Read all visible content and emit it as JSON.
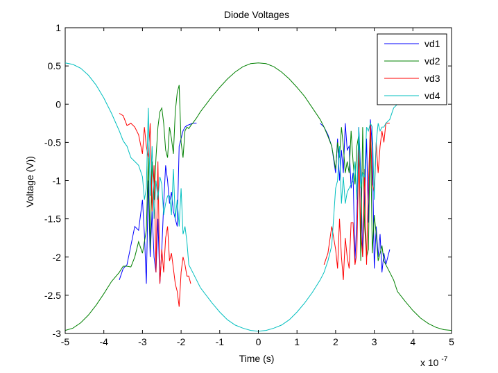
{
  "chart_data": {
    "type": "line",
    "title": "Diode Voltages",
    "xlabel": "Time (s)",
    "ylabel": "Voltage (V))",
    "x_multiplier_label": "x 10",
    "x_multiplier_exponent": "-7",
    "xlim": [
      -5,
      5
    ],
    "ylim": [
      -3,
      1
    ],
    "x_ticks": [
      "-5",
      "-4",
      "-3",
      "-2",
      "-1",
      "0",
      "1",
      "2",
      "3",
      "4",
      "5"
    ],
    "y_ticks": [
      "1",
      "0.5",
      "0",
      "-0.5",
      "-1",
      "-1.5",
      "-2",
      "-2.5",
      "-3"
    ],
    "x_tick_values": [
      -5,
      -4,
      -3,
      -2,
      -1,
      0,
      1,
      2,
      3,
      4,
      5
    ],
    "y_tick_values": [
      1,
      0.5,
      0,
      -0.5,
      -1,
      -1.5,
      -2,
      -2.5,
      -3
    ],
    "grid": false,
    "legend_position": "top-right",
    "series": [
      {
        "name": "vd1",
        "color": "#0000ff",
        "x": [
          -3.6,
          -3.5,
          -3.4,
          -3.3,
          -3.2,
          -3.1,
          -3.0,
          -2.95,
          -2.9,
          -2.85,
          -2.8,
          -2.75,
          -2.7,
          -2.65,
          -2.6,
          -2.55,
          -2.5,
          -2.45,
          -2.4,
          -2.35,
          -2.3,
          -2.25,
          -2.2,
          -2.15,
          -2.1,
          -2.05,
          -2.0,
          -1.95,
          -1.9,
          -1.85,
          -1.8,
          -1.75,
          -1.7,
          -1.6,
          1.6,
          1.7,
          1.8,
          1.9,
          2.0,
          2.05,
          2.1,
          2.15,
          2.2,
          2.25,
          2.3,
          2.35,
          2.4,
          2.45,
          2.5,
          2.55,
          2.6,
          2.65,
          2.7,
          2.75,
          2.8,
          2.85,
          2.9,
          2.95,
          3.0,
          3.05,
          3.1,
          3.15,
          3.2,
          3.25,
          3.3,
          3.4
        ],
        "values": [
          -2.3,
          -2.15,
          -2.1,
          -1.85,
          -1.6,
          -1.65,
          -1.25,
          -1.7,
          -2.35,
          -1.0,
          -2.0,
          -1.4,
          -2.0,
          -2.2,
          -1.5,
          -2.35,
          -1.9,
          -1.3,
          -0.8,
          -1.0,
          -1.3,
          -1.15,
          -1.4,
          -1.5,
          -1.6,
          -0.55,
          -0.45,
          -0.35,
          -0.3,
          -0.28,
          -0.27,
          -0.26,
          -0.25,
          -0.25,
          -0.25,
          -0.3,
          -0.4,
          -0.55,
          -0.9,
          -0.45,
          -1.0,
          -0.6,
          -0.9,
          -0.25,
          -0.6,
          -0.55,
          -1.1,
          -0.9,
          -2.05,
          -1.5,
          -0.3,
          -0.9,
          -2.0,
          -1.25,
          -0.45,
          -1.55,
          -0.2,
          -0.55,
          -2.15,
          -1.6,
          -2.0,
          -1.7,
          -2.2,
          -1.95,
          -2.1,
          -1.9
        ]
      },
      {
        "name": "vd2",
        "color": "#008000",
        "x": [
          -5.0,
          -4.8,
          -4.6,
          -4.4,
          -4.2,
          -4.0,
          -3.8,
          -3.6,
          -3.5,
          -3.4,
          -3.3,
          -3.2,
          -3.1,
          -3.0,
          -2.95,
          -2.9,
          -2.85,
          -2.8,
          -2.75,
          -2.7,
          -2.65,
          -2.6,
          -2.55,
          -2.5,
          -2.45,
          -2.4,
          -2.35,
          -2.3,
          -2.25,
          -2.2,
          -2.15,
          -2.1,
          -2.05,
          -2.0,
          -1.95,
          -1.9,
          -1.85,
          -1.8,
          -1.75,
          -1.7,
          -1.6,
          -1.5,
          -1.2,
          -1.0,
          -0.8,
          -0.6,
          -0.4,
          -0.2,
          0.0,
          0.2,
          0.4,
          0.6,
          0.8,
          1.0,
          1.2,
          1.4,
          1.6,
          1.7,
          1.8,
          1.9,
          2.0,
          2.05,
          2.1,
          2.15,
          2.2,
          2.25,
          2.3,
          2.35,
          2.4,
          2.45,
          2.5,
          2.55,
          2.6,
          2.65,
          2.7,
          2.75,
          2.8,
          2.85,
          2.9,
          2.95,
          3.0,
          3.05,
          3.1,
          3.15,
          3.2,
          3.25,
          3.3,
          3.4,
          3.5,
          3.6,
          3.8,
          4.0,
          4.2,
          4.4,
          4.6,
          4.8,
          5.0
        ],
        "values": [
          -2.96,
          -2.93,
          -2.86,
          -2.76,
          -2.63,
          -2.48,
          -2.32,
          -2.2,
          -2.12,
          -2.12,
          -2.13,
          -2.0,
          -1.8,
          -1.95,
          -1.8,
          -1.65,
          -0.7,
          -1.9,
          -0.75,
          -1.25,
          -0.7,
          -0.3,
          -0.1,
          -0.05,
          -0.25,
          -0.6,
          -0.7,
          -0.3,
          -0.45,
          -0.65,
          -0.1,
          0.15,
          0.25,
          -0.5,
          -0.7,
          -0.35,
          -0.3,
          -0.32,
          -0.28,
          -0.25,
          -0.18,
          -0.1,
          0.1,
          0.22,
          0.33,
          0.42,
          0.49,
          0.53,
          0.54,
          0.53,
          0.49,
          0.42,
          0.33,
          0.22,
          0.1,
          -0.05,
          -0.2,
          -0.3,
          -0.42,
          -0.55,
          -0.85,
          -0.5,
          -0.7,
          -0.3,
          -0.55,
          -0.9,
          -0.75,
          -0.9,
          -0.35,
          -0.75,
          -1.05,
          -0.55,
          -0.4,
          -2.05,
          -0.3,
          -1.6,
          -2.0,
          -1.9,
          -0.3,
          -1.95,
          -1.45,
          -1.7,
          -2.05,
          -1.95,
          -1.85,
          -2.05,
          -2.1,
          -2.2,
          -2.3,
          -2.45,
          -2.58,
          -2.7,
          -2.8,
          -2.87,
          -2.92,
          -2.95,
          -2.96
        ]
      },
      {
        "name": "vd3",
        "color": "#ff0000",
        "x": [
          -3.6,
          -3.5,
          -3.4,
          -3.3,
          -3.2,
          -3.1,
          -3.0,
          -2.95,
          -2.9,
          -2.85,
          -2.8,
          -2.75,
          -2.7,
          -2.65,
          -2.6,
          -2.55,
          -2.5,
          -2.45,
          -2.4,
          -2.35,
          -2.3,
          -2.25,
          -2.2,
          -2.15,
          -2.1,
          -2.05,
          -2.0,
          -1.95,
          -1.9,
          -1.85,
          -1.8,
          -1.75,
          1.7,
          1.8,
          1.9,
          2.0,
          2.05,
          2.1,
          2.15,
          2.2,
          2.25,
          2.3,
          2.35,
          2.4,
          2.45,
          2.5,
          2.55,
          2.6,
          2.65,
          2.7,
          2.75,
          2.8,
          2.85,
          2.9,
          2.95,
          3.0,
          3.05,
          3.1,
          3.15,
          3.2,
          3.25,
          3.3,
          3.4
        ],
        "values": [
          -0.12,
          -0.15,
          -0.28,
          -0.25,
          -0.3,
          -0.4,
          -0.65,
          -0.3,
          -0.55,
          -0.7,
          -0.25,
          -1.4,
          -0.8,
          -2.2,
          -0.75,
          -2.35,
          -1.9,
          -2.2,
          -1.75,
          -1.6,
          -2.05,
          -1.95,
          -2.15,
          -2.35,
          -2.45,
          -2.65,
          -2.2,
          -2.0,
          -2.1,
          -2.25,
          -2.25,
          -2.35,
          -2.1,
          -1.95,
          -1.6,
          -1.9,
          -2.15,
          -1.5,
          -2.0,
          -2.3,
          -1.75,
          -2.0,
          -2.15,
          -1.55,
          -1.55,
          -2.1,
          -1.95,
          -0.6,
          -1.65,
          -2.0,
          -0.85,
          -2.1,
          -1.05,
          -0.25,
          -1.05,
          -1.15,
          -0.5,
          -0.9,
          -0.55,
          -0.35,
          -0.5,
          -0.25,
          -0.25
        ]
      },
      {
        "name": "vd4",
        "color": "#00bfbf",
        "x": [
          -5.0,
          -4.8,
          -4.6,
          -4.4,
          -4.2,
          -4.0,
          -3.8,
          -3.6,
          -3.5,
          -3.4,
          -3.3,
          -3.2,
          -3.1,
          -3.0,
          -2.95,
          -2.9,
          -2.85,
          -2.8,
          -2.75,
          -2.7,
          -2.65,
          -2.6,
          -2.55,
          -2.5,
          -2.45,
          -2.4,
          -2.35,
          -2.3,
          -2.25,
          -2.2,
          -2.15,
          -2.1,
          -2.05,
          -2.0,
          -1.95,
          -1.9,
          -1.85,
          -1.8,
          -1.75,
          -1.7,
          -1.6,
          -1.5,
          -1.2,
          -1.0,
          -0.8,
          -0.6,
          -0.4,
          -0.2,
          0.0,
          0.2,
          0.4,
          0.6,
          0.8,
          1.0,
          1.2,
          1.4,
          1.6,
          1.7,
          1.8,
          1.9,
          2.0,
          2.05,
          2.1,
          2.15,
          2.2,
          2.25,
          2.3,
          2.35,
          2.4,
          2.45,
          2.5,
          2.55,
          2.6,
          2.65,
          2.7,
          2.75,
          2.8,
          2.85,
          2.9,
          2.95,
          3.0,
          3.05,
          3.1,
          3.15,
          3.2,
          3.25,
          3.3,
          3.4,
          3.5,
          3.6
        ],
        "values": [
          0.54,
          0.52,
          0.47,
          0.38,
          0.25,
          0.08,
          -0.12,
          -0.35,
          -0.48,
          -0.55,
          -0.7,
          -0.75,
          -0.8,
          -0.95,
          -1.25,
          -1.1,
          -0.05,
          -1.2,
          -0.55,
          -1.5,
          -1.0,
          -1.25,
          -0.95,
          -1.05,
          -1.45,
          -1.3,
          -1.2,
          -1.2,
          -1.45,
          -0.85,
          -1.5,
          -1.25,
          -1.6,
          -1.1,
          -1.7,
          -1.6,
          -1.8,
          -2.1,
          -2.15,
          -2.2,
          -2.3,
          -2.4,
          -2.6,
          -2.72,
          -2.82,
          -2.89,
          -2.93,
          -2.96,
          -2.97,
          -2.96,
          -2.93,
          -2.89,
          -2.82,
          -2.72,
          -2.6,
          -2.46,
          -2.3,
          -2.2,
          -2.05,
          -1.85,
          -1.1,
          -1.0,
          -0.55,
          -1.3,
          -0.95,
          -1.3,
          -1.15,
          -1.1,
          -1.05,
          -1.0,
          -0.75,
          -1.25,
          -0.3,
          -1.1,
          -0.9,
          -0.95,
          -0.3,
          -0.35,
          -0.25,
          -0.3,
          -1.25,
          -0.5,
          -0.25,
          -0.35,
          -0.3,
          -0.3,
          -0.25,
          -0.2,
          -0.05,
          0.0
        ]
      }
    ]
  }
}
